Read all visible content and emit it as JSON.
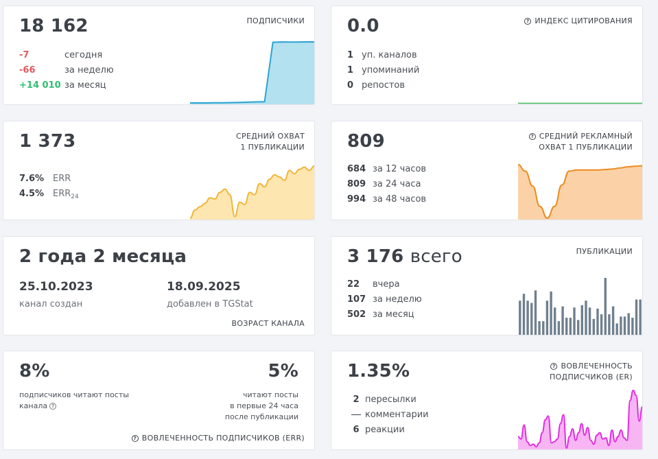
{
  "subscribers": {
    "value": "18 162",
    "label": "ПОДПИСЧИКИ",
    "rows": [
      {
        "value": "-7",
        "text": "сегодня"
      },
      {
        "value": "-66",
        "text": "за неделю"
      },
      {
        "value": "+14 010",
        "text": "за месяц"
      }
    ],
    "series": [
      4,
      4,
      4,
      4.2,
      4.3,
      4.5,
      4.8,
      5.2,
      5.6,
      6,
      100,
      100.5,
      100.3,
      100.4,
      100.6,
      100.5
    ],
    "color": "#2aa3d0",
    "fill": "#b3e1f0"
  },
  "citation": {
    "value": "0.0",
    "label": "ИНДЕКС ЦИТИРОВАНИЯ",
    "rows": [
      {
        "value": "1",
        "text": "уп. каналов"
      },
      {
        "value": "1",
        "text": "упоминаний"
      },
      {
        "value": "0",
        "text": "репостов"
      }
    ],
    "color": "#3bb35a"
  },
  "reach": {
    "value": "1 373",
    "label_line1": "СРЕДНИЙ ОХВАТ",
    "label_line2": "1 ПУБЛИКАЦИИ",
    "err_value": "7.6%",
    "err_label": "ERR",
    "err24_value": "4.5%",
    "err24_label": "ERR",
    "err24_sub": "24",
    "series": [
      5,
      20,
      26,
      32,
      42,
      40,
      52,
      58,
      48,
      8,
      34,
      30,
      52,
      48,
      68,
      62,
      76,
      84,
      80,
      74,
      92,
      86,
      94,
      98,
      92,
      100
    ],
    "color": "#f2b53a",
    "fill": "#fde6b0"
  },
  "ad_reach": {
    "value": "809",
    "label_line1": "СРЕДНИЙ РЕКЛАМНЫЙ",
    "label_line2": "ОХВАТ 1 ПУБЛИКАЦИИ",
    "rows": [
      {
        "value": "684",
        "text": "за 12 часов"
      },
      {
        "value": "809",
        "text": "за 24 часа"
      },
      {
        "value": "994",
        "text": "за 48 часов"
      }
    ],
    "series": [
      100,
      88,
      60,
      22,
      0,
      22,
      62,
      88,
      90,
      90,
      90,
      90,
      91,
      92,
      94,
      96,
      97,
      98
    ],
    "color": "#ec8a1f",
    "fill": "#fbd2a7"
  },
  "age": {
    "value": "2 года 2 месяца",
    "created_date": "25.10.2023",
    "created_label": "канал создан",
    "added_date": "18.09.2025",
    "added_label": "добавлен в TGStat",
    "label": "ВОЗРАСТ КАНАЛА"
  },
  "publications": {
    "value": "3 176",
    "value_suffix": "всего",
    "label": "ПУБЛИКАЦИИ",
    "rows": [
      {
        "value": "22",
        "text": "вчера"
      },
      {
        "value": "107",
        "text": "за неделю"
      },
      {
        "value": "502",
        "text": "за месяц"
      }
    ],
    "bars": [
      60,
      72,
      60,
      56,
      78,
      24,
      24,
      60,
      76,
      48,
      24,
      50,
      30,
      30,
      48,
      26,
      52,
      60,
      48,
      28,
      46,
      36,
      100,
      36,
      50,
      20,
      32,
      32,
      38,
      30,
      62,
      62
    ],
    "color": "#6f7f8e"
  },
  "engagement": {
    "left_value": "8%",
    "left_text": "подписчиков читают посты канала",
    "right_value": "5%",
    "right_line1": "читают посты",
    "right_line2": "в первые 24 часа",
    "right_line3": "после публикации",
    "label": "ВОВЛЕЧЕННОСТЬ ПОДПИСЧИКОВ (ERR)"
  },
  "er": {
    "value": "1.35%",
    "label_line1": "ВОВЛЕЧЕННОСТЬ",
    "label_line2": "ПОДПИСЧИКОВ (ER)",
    "rows": [
      {
        "value": "2",
        "text": "пересылки"
      },
      {
        "value": "",
        "text": "комментарии"
      },
      {
        "value": "6",
        "text": "реакции"
      }
    ],
    "series": [
      28,
      24,
      46,
      20,
      14,
      16,
      12,
      18,
      34,
      54,
      60,
      18,
      20,
      24,
      48,
      62,
      10,
      28,
      40,
      22,
      34,
      48,
      30,
      42,
      22,
      16,
      30,
      34,
      24,
      26,
      14,
      38,
      20,
      28,
      38,
      26,
      22,
      84,
      100,
      92,
      52,
      74
    ],
    "color": "#e02ee0",
    "fill": "#f7b5f4"
  }
}
